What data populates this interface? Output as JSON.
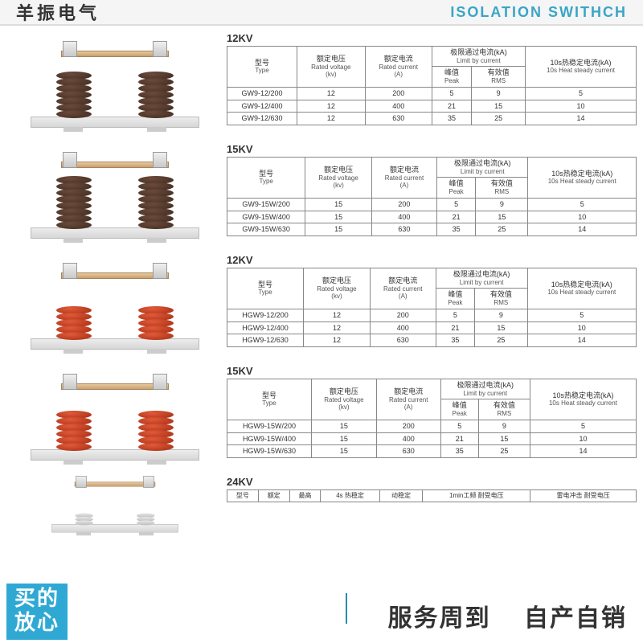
{
  "header": {
    "left": "羊振电气",
    "right": "ISOLATION SWITHCH"
  },
  "common_headers": {
    "type": {
      "cn": "型号",
      "en": "Type"
    },
    "voltage": {
      "cn": "额定电压",
      "en": "Rated voltage",
      "unit": "(kv)"
    },
    "current": {
      "cn": "额定电流",
      "en": "Rated current",
      "unit": "(A)"
    },
    "limit": {
      "cn": "极限通过电流(kA)",
      "en": "Limit by current"
    },
    "peak": {
      "cn": "峰值",
      "en": "Peak"
    },
    "rms": {
      "cn": "有效值",
      "en": "RMS"
    },
    "heat": {
      "cn": "10s热稳定电流(kA)",
      "en": "10s Heat steady current"
    }
  },
  "sections": [
    {
      "title": "12KV",
      "color": "brown",
      "discs": 7,
      "rows": [
        {
          "type": "GW9-12/200",
          "v": "12",
          "c": "200",
          "peak": "5",
          "rms": "9",
          "heat": "5"
        },
        {
          "type": "GW9-12/400",
          "v": "12",
          "c": "400",
          "peak": "21",
          "rms": "15",
          "heat": "10"
        },
        {
          "type": "GW9-12/630",
          "v": "12",
          "c": "630",
          "peak": "35",
          "rms": "25",
          "heat": "14"
        }
      ]
    },
    {
      "title": "15KV",
      "color": "brown",
      "discs": 8,
      "rows": [
        {
          "type": "GW9-15W/200",
          "v": "15",
          "c": "200",
          "peak": "5",
          "rms": "9",
          "heat": "5"
        },
        {
          "type": "GW9-15W/400",
          "v": "15",
          "c": "400",
          "peak": "21",
          "rms": "15",
          "heat": "10"
        },
        {
          "type": "GW9-15W/630",
          "v": "15",
          "c": "630",
          "peak": "35",
          "rms": "25",
          "heat": "14"
        }
      ]
    },
    {
      "title": "12KV",
      "color": "red",
      "discs": 5,
      "rows": [
        {
          "type": "HGW9-12/200",
          "v": "12",
          "c": "200",
          "peak": "5",
          "rms": "9",
          "heat": "5"
        },
        {
          "type": "HGW9-12/400",
          "v": "12",
          "c": "400",
          "peak": "21",
          "rms": "15",
          "heat": "10"
        },
        {
          "type": "HGW9-12/630",
          "v": "12",
          "c": "630",
          "peak": "35",
          "rms": "25",
          "heat": "14"
        }
      ]
    },
    {
      "title": "15KV",
      "color": "red",
      "discs": 6,
      "rows": [
        {
          "type": "HGW9-15W/200",
          "v": "15",
          "c": "200",
          "peak": "5",
          "rms": "9",
          "heat": "5"
        },
        {
          "type": "HGW9-15W/400",
          "v": "15",
          "c": "400",
          "peak": "21",
          "rms": "15",
          "heat": "10"
        },
        {
          "type": "HGW9-15W/630",
          "v": "15",
          "c": "630",
          "peak": "35",
          "rms": "25",
          "heat": "14"
        }
      ]
    }
  ],
  "section24": {
    "title": "24KV",
    "headers": [
      "型号",
      "额定",
      "最高",
      "4s 热稳定",
      "动稳定",
      "1min工频 耐受电压",
      "雷电冲击 耐受电压"
    ]
  },
  "footer": {
    "badge_line1": "买的",
    "badge_line2": "放心",
    "text1": "服务周到",
    "text2": "自产自销"
  },
  "colors": {
    "accent": "#2fa9d4",
    "header_right": "#3aa5c7",
    "brown_disc": "#3d2a20",
    "red_disc": "#a52b10",
    "border": "#888888"
  }
}
